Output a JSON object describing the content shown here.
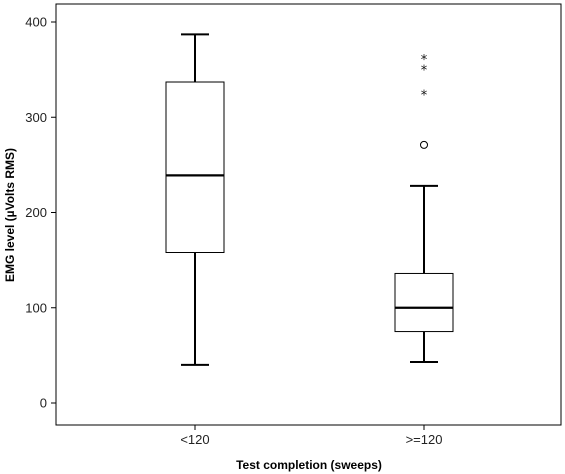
{
  "chart_data": {
    "type": "box",
    "xlabel": "Test completion (sweeps)",
    "ylabel": "EMG level (µVolts RMS)",
    "ylim": [
      -20,
      405
    ],
    "yticks": [
      0,
      100,
      200,
      300,
      400
    ],
    "categories": [
      "<120",
      ">=120"
    ],
    "boxes": [
      {
        "category": "<120",
        "min": 40,
        "q1": 158,
        "median": 239,
        "q3": 337,
        "max": 387,
        "outliers": [],
        "extremes": []
      },
      {
        "category": ">=120",
        "min": 43,
        "q1": 75,
        "median": 100,
        "q3": 136,
        "max": 228,
        "outliers": [
          271
        ],
        "extremes": [
          325,
          351,
          362
        ]
      }
    ],
    "grid": false,
    "legend": "none"
  }
}
